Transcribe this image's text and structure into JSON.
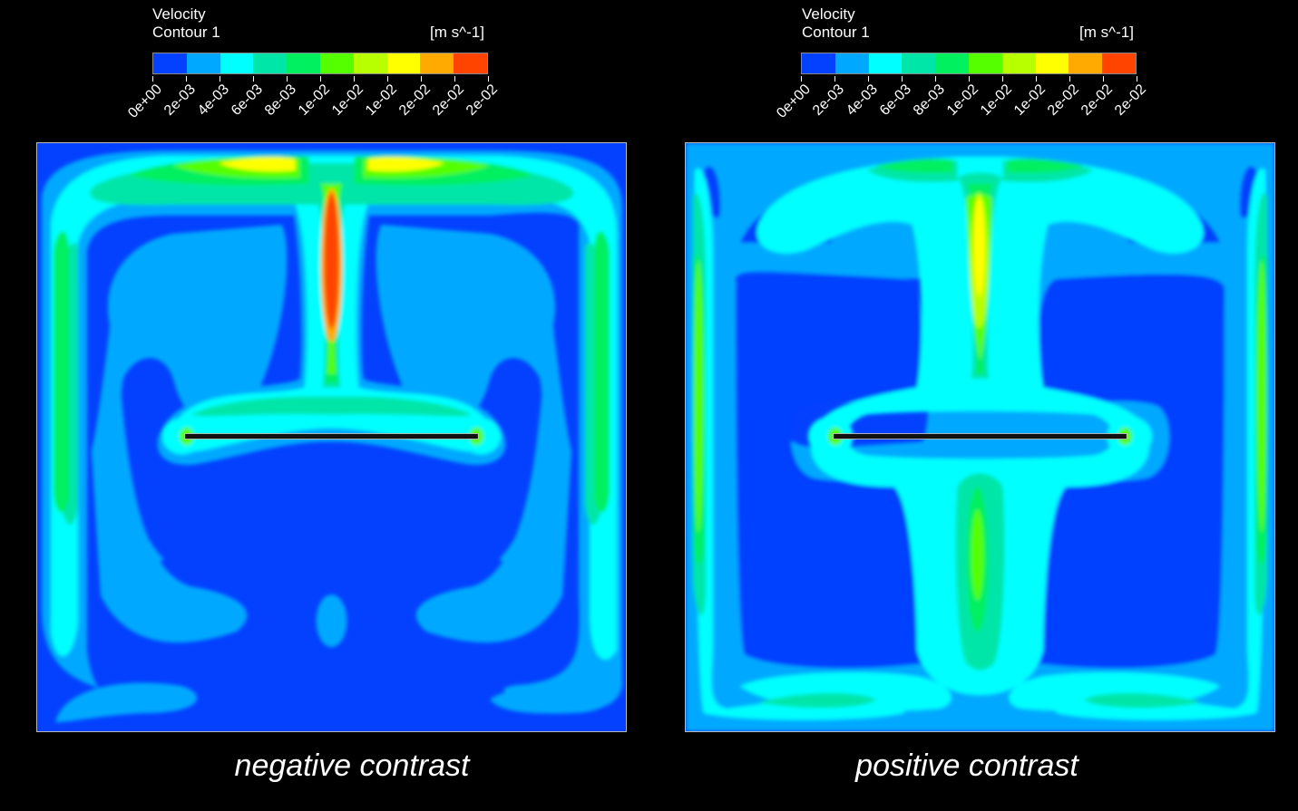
{
  "panels": [
    {
      "legend": {
        "title_line1": "Velocity",
        "title_line2": "Contour 1",
        "units": "[m s^-1]"
      },
      "caption": "negative contrast"
    },
    {
      "legend": {
        "title_line1": "Velocity",
        "title_line2": "Contour 1",
        "units": "[m s^-1]"
      },
      "caption": "positive contrast"
    }
  ],
  "colorbar": {
    "colors": [
      "#0341ff",
      "#00a9ff",
      "#00ffff",
      "#00e6a8",
      "#00f060",
      "#55ff00",
      "#b8ff00",
      "#ffff00",
      "#ffaa00",
      "#ff4400"
    ],
    "ticks": [
      "0e+00",
      "2e-03",
      "4e-03",
      "6e-03",
      "8e-03",
      "1e-02",
      "1e-02",
      "1e-02",
      "2e-02",
      "2e-02",
      "2e-02"
    ]
  },
  "contour_colors": {
    "level0": "#0341ff",
    "level1": "#00a9ff",
    "level2": "#00ffff",
    "level3": "#00e6a8",
    "level4": "#00f060",
    "level5": "#55ff00",
    "level6": "#b8ff00",
    "level7": "#ffff00",
    "level8": "#ffaa00",
    "level9": "#ff4400",
    "plate": "#111111"
  }
}
